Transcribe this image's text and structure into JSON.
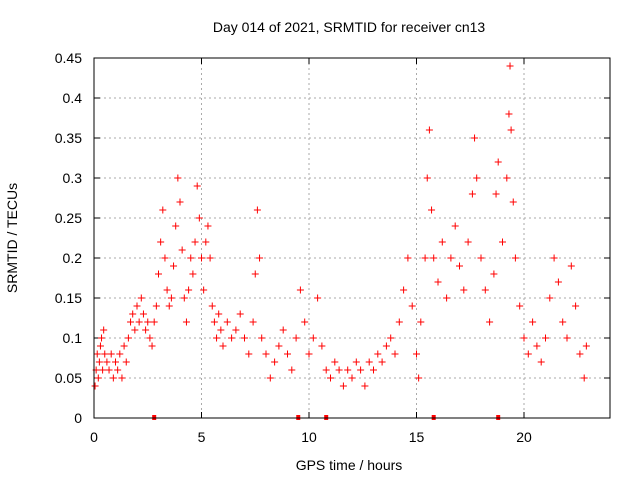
{
  "chart_data": {
    "type": "scatter",
    "title": "Day 014 of 2021, SRMTID for receiver cn13",
    "xlabel": "GPS time / hours",
    "ylabel": "SRMTID / TECUs",
    "xlim": [
      0,
      24
    ],
    "ylim": [
      0,
      0.45
    ],
    "xticks": [
      0,
      5,
      10,
      15,
      20
    ],
    "yticks": [
      0,
      0.05,
      0.1,
      0.15,
      0.2,
      0.25,
      0.3,
      0.35,
      0.4,
      0.45
    ],
    "xtick_labels": [
      "0",
      "5",
      "10",
      "15",
      "20"
    ],
    "ytick_labels": [
      "0",
      "0.05",
      "0.1",
      "0.15",
      "0.2",
      "0.25",
      "0.3",
      "0.35",
      "0.4",
      "0.45"
    ],
    "grid": true,
    "marker": "+",
    "series": [
      {
        "name": "SRMTID",
        "color": "#ff0000",
        "points": [
          [
            0.05,
            0.04
          ],
          [
            0.1,
            0.06
          ],
          [
            0.15,
            0.08
          ],
          [
            0.2,
            0.05
          ],
          [
            0.25,
            0.07
          ],
          [
            0.3,
            0.09
          ],
          [
            0.35,
            0.1
          ],
          [
            0.4,
            0.06
          ],
          [
            0.45,
            0.11
          ],
          [
            0.5,
            0.08
          ],
          [
            0.6,
            0.07
          ],
          [
            0.7,
            0.06
          ],
          [
            0.8,
            0.08
          ],
          [
            0.9,
            0.05
          ],
          [
            1.0,
            0.07
          ],
          [
            1.1,
            0.06
          ],
          [
            1.2,
            0.08
          ],
          [
            1.3,
            0.05
          ],
          [
            1.4,
            0.09
          ],
          [
            1.5,
            0.07
          ],
          [
            1.6,
            0.1
          ],
          [
            1.7,
            0.12
          ],
          [
            1.8,
            0.13
          ],
          [
            1.9,
            0.11
          ],
          [
            2.0,
            0.14
          ],
          [
            2.1,
            0.12
          ],
          [
            2.2,
            0.15
          ],
          [
            2.3,
            0.13
          ],
          [
            2.4,
            0.11
          ],
          [
            2.5,
            0.12
          ],
          [
            2.6,
            0.1
          ],
          [
            2.7,
            0.09
          ],
          [
            2.8,
            0.12
          ],
          [
            2.9,
            0.14
          ],
          [
            3.0,
            0.18
          ],
          [
            3.1,
            0.22
          ],
          [
            3.2,
            0.26
          ],
          [
            3.3,
            0.2
          ],
          [
            3.4,
            0.16
          ],
          [
            3.5,
            0.14
          ],
          [
            3.6,
            0.15
          ],
          [
            3.7,
            0.19
          ],
          [
            3.8,
            0.24
          ],
          [
            3.9,
            0.3
          ],
          [
            4.0,
            0.27
          ],
          [
            4.1,
            0.21
          ],
          [
            4.2,
            0.15
          ],
          [
            4.3,
            0.12
          ],
          [
            4.4,
            0.16
          ],
          [
            4.5,
            0.2
          ],
          [
            4.6,
            0.18
          ],
          [
            4.7,
            0.22
          ],
          [
            4.8,
            0.29
          ],
          [
            4.9,
            0.25
          ],
          [
            5.0,
            0.2
          ],
          [
            5.1,
            0.16
          ],
          [
            5.2,
            0.22
          ],
          [
            5.3,
            0.24
          ],
          [
            5.4,
            0.2
          ],
          [
            5.5,
            0.14
          ],
          [
            5.6,
            0.12
          ],
          [
            5.7,
            0.1
          ],
          [
            5.8,
            0.13
          ],
          [
            5.9,
            0.11
          ],
          [
            6.0,
            0.09
          ],
          [
            6.2,
            0.12
          ],
          [
            6.4,
            0.1
          ],
          [
            6.6,
            0.11
          ],
          [
            6.8,
            0.13
          ],
          [
            7.0,
            0.1
          ],
          [
            7.2,
            0.08
          ],
          [
            7.4,
            0.12
          ],
          [
            7.5,
            0.18
          ],
          [
            7.6,
            0.26
          ],
          [
            7.7,
            0.2
          ],
          [
            7.8,
            0.1
          ],
          [
            8.0,
            0.08
          ],
          [
            8.2,
            0.05
          ],
          [
            8.4,
            0.07
          ],
          [
            8.6,
            0.09
          ],
          [
            8.8,
            0.11
          ],
          [
            9.0,
            0.08
          ],
          [
            9.2,
            0.06
          ],
          [
            9.4,
            0.1
          ],
          [
            9.6,
            0.16
          ],
          [
            9.8,
            0.12
          ],
          [
            10.0,
            0.08
          ],
          [
            10.2,
            0.1
          ],
          [
            10.4,
            0.15
          ],
          [
            10.6,
            0.09
          ],
          [
            10.8,
            0.06
          ],
          [
            11.0,
            0.05
          ],
          [
            11.2,
            0.07
          ],
          [
            11.4,
            0.06
          ],
          [
            11.6,
            0.04
          ],
          [
            11.8,
            0.06
          ],
          [
            12.0,
            0.05
          ],
          [
            12.2,
            0.07
          ],
          [
            12.4,
            0.06
          ],
          [
            12.6,
            0.04
          ],
          [
            12.8,
            0.07
          ],
          [
            13.0,
            0.06
          ],
          [
            13.2,
            0.08
          ],
          [
            13.4,
            0.07
          ],
          [
            13.6,
            0.09
          ],
          [
            13.8,
            0.1
          ],
          [
            14.0,
            0.08
          ],
          [
            14.2,
            0.12
          ],
          [
            14.4,
            0.16
          ],
          [
            14.6,
            0.2
          ],
          [
            14.8,
            0.14
          ],
          [
            15.0,
            0.08
          ],
          [
            15.1,
            0.05
          ],
          [
            15.2,
            0.12
          ],
          [
            15.4,
            0.2
          ],
          [
            15.5,
            0.3
          ],
          [
            15.6,
            0.36
          ],
          [
            15.7,
            0.26
          ],
          [
            15.8,
            0.2
          ],
          [
            16.0,
            0.17
          ],
          [
            16.2,
            0.22
          ],
          [
            16.4,
            0.15
          ],
          [
            16.6,
            0.2
          ],
          [
            16.8,
            0.24
          ],
          [
            17.0,
            0.19
          ],
          [
            17.2,
            0.16
          ],
          [
            17.4,
            0.22
          ],
          [
            17.6,
            0.28
          ],
          [
            17.7,
            0.35
          ],
          [
            17.8,
            0.3
          ],
          [
            18.0,
            0.2
          ],
          [
            18.2,
            0.16
          ],
          [
            18.4,
            0.12
          ],
          [
            18.6,
            0.18
          ],
          [
            18.7,
            0.28
          ],
          [
            18.8,
            0.32
          ],
          [
            19.0,
            0.22
          ],
          [
            19.2,
            0.3
          ],
          [
            19.3,
            0.38
          ],
          [
            19.35,
            0.44
          ],
          [
            19.4,
            0.36
          ],
          [
            19.5,
            0.27
          ],
          [
            19.6,
            0.2
          ],
          [
            19.8,
            0.14
          ],
          [
            20.0,
            0.1
          ],
          [
            20.2,
            0.08
          ],
          [
            20.4,
            0.12
          ],
          [
            20.6,
            0.09
          ],
          [
            20.8,
            0.07
          ],
          [
            21.0,
            0.1
          ],
          [
            21.2,
            0.15
          ],
          [
            21.4,
            0.2
          ],
          [
            21.6,
            0.17
          ],
          [
            21.8,
            0.12
          ],
          [
            22.0,
            0.1
          ],
          [
            22.2,
            0.19
          ],
          [
            22.4,
            0.14
          ],
          [
            22.6,
            0.08
          ],
          [
            22.8,
            0.05
          ],
          [
            22.9,
            0.09
          ]
        ]
      }
    ],
    "baseline_markers_x": [
      2.8,
      9.5,
      10.8,
      15.8,
      18.8
    ]
  }
}
